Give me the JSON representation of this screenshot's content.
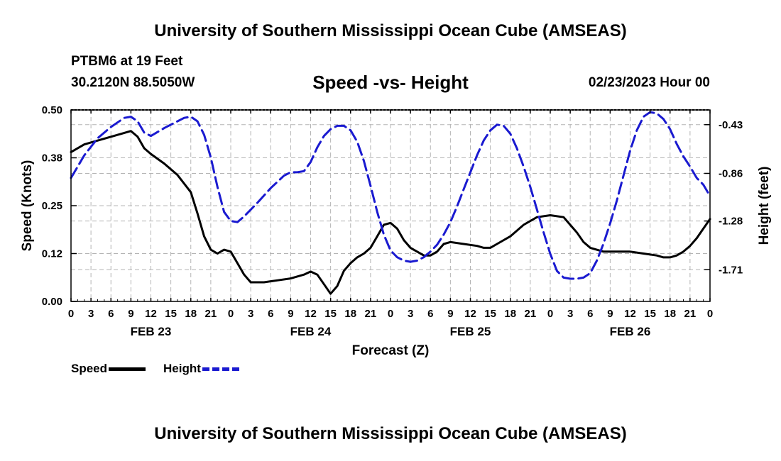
{
  "header": {
    "title": "University of Southern Mississippi Ocean Cube (AMSEAS)",
    "station": "PTBM6 at 19 Feet",
    "coords": "30.2120N  88.5050W",
    "chart_title": "Speed -vs- Height",
    "run_time": "02/23/2023 Hour 00"
  },
  "footer": {
    "title": "University of Southern Mississippi Ocean Cube (AMSEAS)"
  },
  "legend": {
    "speed_label": "Speed",
    "height_label": "Height"
  },
  "colors": {
    "speed": "#000000",
    "height": "#1a1ad0",
    "grid": "#b4b4b4"
  },
  "chart_data": {
    "type": "line",
    "title": "Speed -vs- Height",
    "xlabel": "Forecast (Z)",
    "ylabel": "Speed (Knots)",
    "y2label": "Height (feet)",
    "xlim": [
      0,
      96
    ],
    "ylim": [
      0,
      0.5
    ],
    "y2lim": [
      -1.99,
      -0.3
    ],
    "grid": true,
    "x_ticks": [
      0,
      3,
      6,
      9,
      12,
      15,
      18,
      21,
      24,
      27,
      30,
      33,
      36,
      39,
      42,
      45,
      48,
      51,
      54,
      57,
      60,
      63,
      66,
      69,
      72,
      75,
      78,
      81,
      84,
      87,
      90,
      93,
      96
    ],
    "x_tick_labels": [
      "0",
      "3",
      "6",
      "9",
      "12",
      "15",
      "18",
      "21",
      "0",
      "3",
      "6",
      "9",
      "12",
      "15",
      "18",
      "21",
      "0",
      "3",
      "6",
      "9",
      "12",
      "15",
      "18",
      "21",
      "0",
      "3",
      "6",
      "9",
      "12",
      "15",
      "18",
      "21",
      "0"
    ],
    "date_labels": [
      {
        "x": 12,
        "label": "FEB 23"
      },
      {
        "x": 36,
        "label": "FEB 24"
      },
      {
        "x": 60,
        "label": "FEB 25"
      },
      {
        "x": 84,
        "label": "FEB 26"
      }
    ],
    "y_ticks": [
      0,
      0.125,
      0.25,
      0.375,
      0.5
    ],
    "y_tick_labels": [
      "0.00",
      "0.12",
      "0.25",
      "0.38",
      "0.50"
    ],
    "y2_ticks": [
      -1.71,
      -1.28,
      -0.86,
      -0.43
    ],
    "y2_tick_labels": [
      "-1.71",
      "-1.28",
      "-0.86",
      "-0.43"
    ],
    "series": [
      {
        "name": "Speed",
        "axis": "left",
        "style": "solid",
        "points": [
          [
            0,
            0.39
          ],
          [
            2,
            0.41
          ],
          [
            4,
            0.42
          ],
          [
            6,
            0.43
          ],
          [
            8,
            0.44
          ],
          [
            9,
            0.445
          ],
          [
            10,
            0.43
          ],
          [
            11,
            0.4
          ],
          [
            12,
            0.385
          ],
          [
            14,
            0.36
          ],
          [
            16,
            0.33
          ],
          [
            18,
            0.285
          ],
          [
            19,
            0.23
          ],
          [
            20,
            0.17
          ],
          [
            21,
            0.135
          ],
          [
            22,
            0.125
          ],
          [
            23,
            0.135
          ],
          [
            24,
            0.13
          ],
          [
            25,
            0.1
          ],
          [
            26,
            0.07
          ],
          [
            27,
            0.05
          ],
          [
            29,
            0.05
          ],
          [
            31,
            0.055
          ],
          [
            33,
            0.06
          ],
          [
            35,
            0.07
          ],
          [
            36,
            0.078
          ],
          [
            37,
            0.07
          ],
          [
            38,
            0.045
          ],
          [
            39,
            0.02
          ],
          [
            40,
            0.04
          ],
          [
            41,
            0.08
          ],
          [
            42,
            0.1
          ],
          [
            43,
            0.115
          ],
          [
            44,
            0.125
          ],
          [
            45,
            0.14
          ],
          [
            46,
            0.17
          ],
          [
            47,
            0.2
          ],
          [
            48,
            0.205
          ],
          [
            49,
            0.19
          ],
          [
            50,
            0.16
          ],
          [
            51,
            0.14
          ],
          [
            52,
            0.13
          ],
          [
            53,
            0.12
          ],
          [
            54,
            0.12
          ],
          [
            55,
            0.13
          ],
          [
            56,
            0.15
          ],
          [
            57,
            0.155
          ],
          [
            59,
            0.15
          ],
          [
            61,
            0.145
          ],
          [
            62,
            0.14
          ],
          [
            63,
            0.14
          ],
          [
            64,
            0.15
          ],
          [
            66,
            0.17
          ],
          [
            68,
            0.2
          ],
          [
            70,
            0.22
          ],
          [
            72,
            0.225
          ],
          [
            74,
            0.22
          ],
          [
            75,
            0.2
          ],
          [
            76,
            0.18
          ],
          [
            77,
            0.155
          ],
          [
            78,
            0.14
          ],
          [
            80,
            0.13
          ],
          [
            82,
            0.13
          ],
          [
            84,
            0.13
          ],
          [
            86,
            0.125
          ],
          [
            88,
            0.12
          ],
          [
            89,
            0.115
          ],
          [
            90,
            0.115
          ],
          [
            91,
            0.12
          ],
          [
            92,
            0.13
          ],
          [
            93,
            0.145
          ],
          [
            94,
            0.165
          ],
          [
            95,
            0.19
          ],
          [
            96,
            0.215
          ]
        ]
      },
      {
        "name": "Height",
        "axis": "right",
        "style": "dashed",
        "points": [
          [
            0,
            -0.9
          ],
          [
            2,
            -0.7
          ],
          [
            4,
            -0.55
          ],
          [
            6,
            -0.45
          ],
          [
            8,
            -0.37
          ],
          [
            9,
            -0.36
          ],
          [
            10,
            -0.4
          ],
          [
            11,
            -0.5
          ],
          [
            12,
            -0.53
          ],
          [
            14,
            -0.46
          ],
          [
            16,
            -0.4
          ],
          [
            17,
            -0.37
          ],
          [
            18,
            -0.36
          ],
          [
            19,
            -0.4
          ],
          [
            20,
            -0.52
          ],
          [
            21,
            -0.72
          ],
          [
            22,
            -0.98
          ],
          [
            23,
            -1.2
          ],
          [
            24,
            -1.28
          ],
          [
            25,
            -1.29
          ],
          [
            26,
            -1.24
          ],
          [
            28,
            -1.12
          ],
          [
            30,
            -0.99
          ],
          [
            32,
            -0.88
          ],
          [
            33,
            -0.85
          ],
          [
            34,
            -0.85
          ],
          [
            35,
            -0.84
          ],
          [
            36,
            -0.76
          ],
          [
            37,
            -0.63
          ],
          [
            38,
            -0.53
          ],
          [
            39,
            -0.47
          ],
          [
            40,
            -0.44
          ],
          [
            41,
            -0.44
          ],
          [
            42,
            -0.48
          ],
          [
            43,
            -0.58
          ],
          [
            44,
            -0.75
          ],
          [
            45,
            -0.97
          ],
          [
            46,
            -1.2
          ],
          [
            47,
            -1.4
          ],
          [
            48,
            -1.54
          ],
          [
            49,
            -1.6
          ],
          [
            50,
            -1.63
          ],
          [
            51,
            -1.64
          ],
          [
            52,
            -1.63
          ],
          [
            53,
            -1.6
          ],
          [
            54,
            -1.55
          ],
          [
            55,
            -1.49
          ],
          [
            56,
            -1.4
          ],
          [
            57,
            -1.29
          ],
          [
            58,
            -1.15
          ],
          [
            59,
            -1.0
          ],
          [
            60,
            -0.85
          ],
          [
            61,
            -0.7
          ],
          [
            62,
            -0.57
          ],
          [
            63,
            -0.48
          ],
          [
            64,
            -0.43
          ],
          [
            65,
            -0.44
          ],
          [
            66,
            -0.51
          ],
          [
            67,
            -0.64
          ],
          [
            68,
            -0.8
          ],
          [
            69,
            -0.98
          ],
          [
            70,
            -1.18
          ],
          [
            71,
            -1.38
          ],
          [
            72,
            -1.57
          ],
          [
            73,
            -1.72
          ],
          [
            74,
            -1.78
          ],
          [
            75,
            -1.79
          ],
          [
            76,
            -1.79
          ],
          [
            77,
            -1.78
          ],
          [
            78,
            -1.74
          ],
          [
            79,
            -1.63
          ],
          [
            80,
            -1.48
          ],
          [
            81,
            -1.3
          ],
          [
            82,
            -1.1
          ],
          [
            83,
            -0.88
          ],
          [
            84,
            -0.66
          ],
          [
            85,
            -0.48
          ],
          [
            86,
            -0.36
          ],
          [
            87,
            -0.32
          ],
          [
            88,
            -0.33
          ],
          [
            89,
            -0.38
          ],
          [
            90,
            -0.47
          ],
          [
            91,
            -0.6
          ],
          [
            92,
            -0.71
          ],
          [
            93,
            -0.8
          ],
          [
            94,
            -0.9
          ],
          [
            95,
            -0.96
          ],
          [
            96,
            -1.06
          ]
        ]
      }
    ]
  }
}
